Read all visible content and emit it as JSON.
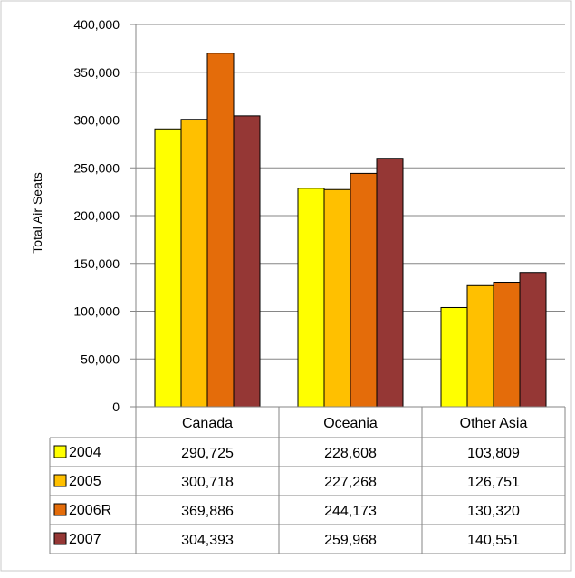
{
  "chart_data": {
    "type": "bar",
    "title": "",
    "xlabel": "",
    "ylabel": "Total Air Seats",
    "ylim": [
      0,
      400000
    ],
    "ytick_step": 50000,
    "ytick_labels": [
      "0",
      "50,000",
      "100,000",
      "150,000",
      "200,000",
      "250,000",
      "300,000",
      "350,000",
      "400,000"
    ],
    "grid": true,
    "legend_placement": "data-table-left",
    "categories": [
      "Canada",
      "Oceania",
      "Other Asia"
    ],
    "series": [
      {
        "name": "2004",
        "color": "#FFFF00",
        "values": [
          290725,
          228608,
          103809
        ],
        "labels": [
          "290,725",
          "228,608",
          "103,809"
        ]
      },
      {
        "name": "2005",
        "color": "#FFC000",
        "values": [
          300718,
          227268,
          126751
        ],
        "labels": [
          "300,718",
          "227,268",
          "126,751"
        ]
      },
      {
        "name": "2006R",
        "color": "#E46C0A",
        "values": [
          369886,
          244173,
          130320
        ],
        "labels": [
          "369,886",
          "244,173",
          "130,320"
        ]
      },
      {
        "name": "2007",
        "color": "#953735",
        "values": [
          304393,
          259968,
          140551
        ],
        "labels": [
          "304,393",
          "259,968",
          "140,551"
        ]
      }
    ]
  }
}
